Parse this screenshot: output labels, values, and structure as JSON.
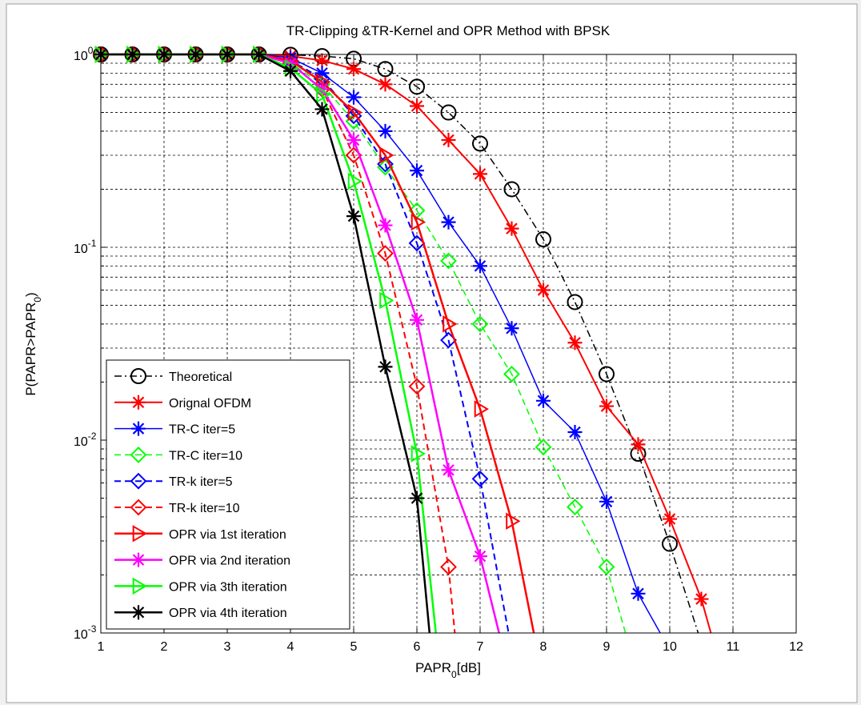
{
  "chart_data": {
    "type": "line",
    "title": "TR-Clipping &TR-Kernel and OPR Method with BPSK",
    "xlabel": "PAPR",
    "xlabel_sub": "0",
    "xlabel_suffix": "[dB]",
    "ylabel": "P(PAPR>PAPR",
    "ylabel_sub": "0",
    "ylabel_suffix": ")",
    "xlim": [
      1,
      12
    ],
    "ylim": [
      0.001,
      1
    ],
    "yscale": "log",
    "grid": true,
    "legend_position": "bottom-left",
    "xticks": [
      "1",
      "2",
      "3",
      "4",
      "5",
      "6",
      "7",
      "8",
      "9",
      "10",
      "11",
      "12"
    ],
    "yticks": [
      {
        "base": "10",
        "exp": "0",
        "value": 1
      },
      {
        "base": "10",
        "exp": "-1",
        "value": 0.1
      },
      {
        "base": "10",
        "exp": "-2",
        "value": 0.01
      },
      {
        "base": "10",
        "exp": "-3",
        "value": 0.001
      }
    ],
    "series": [
      {
        "name": "Theoretical",
        "color": "#000000",
        "dash": "dashdot",
        "marker": "circle",
        "width": 1.5,
        "x": [
          1,
          1.5,
          2,
          2.5,
          3,
          3.5,
          4,
          4.5,
          5,
          5.5,
          6,
          6.5,
          7,
          7.5,
          8,
          8.5,
          9,
          9.5,
          10,
          10.45
        ],
        "y": [
          1,
          1,
          1,
          1,
          1,
          1,
          0.995,
          0.98,
          0.95,
          0.84,
          0.68,
          0.5,
          0.345,
          0.2,
          0.11,
          0.052,
          0.022,
          0.0085,
          0.0029,
          0.001
        ]
      },
      {
        "name": "Orignal OFDM",
        "color": "#ff0000",
        "dash": "solid",
        "marker": "star",
        "width": 2,
        "x": [
          1,
          1.5,
          2,
          2.5,
          3,
          3.5,
          4,
          4.5,
          5,
          5.5,
          6,
          6.5,
          7,
          7.5,
          8,
          8.5,
          9,
          9.5,
          10,
          10.5,
          10.65
        ],
        "y": [
          1,
          1,
          1,
          1,
          1,
          1,
          0.98,
          0.93,
          0.84,
          0.7,
          0.54,
          0.36,
          0.24,
          0.125,
          0.06,
          0.032,
          0.015,
          0.0095,
          0.0039,
          0.0015,
          0.001
        ]
      },
      {
        "name": "TR-C iter=5",
        "color": "#0000ff",
        "dash": "solid",
        "marker": "star",
        "width": 1.5,
        "x": [
          1,
          1.5,
          2,
          2.5,
          3,
          3.5,
          4,
          4.5,
          5,
          5.5,
          6,
          6.5,
          7,
          7.5,
          8,
          8.5,
          9,
          9.5,
          9.85
        ],
        "y": [
          1,
          1,
          1,
          1,
          1,
          1,
          0.96,
          0.8,
          0.6,
          0.4,
          0.25,
          0.135,
          0.08,
          0.038,
          0.016,
          0.011,
          0.0048,
          0.0016,
          0.001
        ]
      },
      {
        "name": "TR-C iter=10",
        "color": "#00ff00",
        "dash": "dashed",
        "marker": "diamond",
        "width": 1.5,
        "x": [
          1,
          1.5,
          2,
          2.5,
          3,
          3.5,
          4,
          4.5,
          5,
          5.5,
          6,
          6.5,
          7,
          7.5,
          8,
          8.5,
          9,
          9.3
        ],
        "y": [
          1,
          1,
          1,
          1,
          1,
          1,
          0.9,
          0.7,
          0.45,
          0.26,
          0.155,
          0.085,
          0.04,
          0.022,
          0.0092,
          0.0045,
          0.0022,
          0.001
        ]
      },
      {
        "name": "TR-k iter=5",
        "color": "#0000ff",
        "dash": "dashed",
        "marker": "diamond",
        "width": 2,
        "x": [
          1,
          1.5,
          2,
          2.5,
          3,
          3.5,
          4,
          4.5,
          5,
          5.5,
          6,
          6.5,
          7,
          7.45
        ],
        "y": [
          1,
          1,
          1,
          1,
          1,
          1,
          0.93,
          0.75,
          0.48,
          0.27,
          0.105,
          0.033,
          0.0063,
          0.001
        ]
      },
      {
        "name": "TR-k iter=10",
        "color": "#ff0000",
        "dash": "dashed",
        "marker": "diamond",
        "width": 2,
        "x": [
          1,
          1.5,
          2,
          2.5,
          3,
          3.5,
          4,
          4.5,
          5,
          5.5,
          6,
          6.5,
          6.6
        ],
        "y": [
          1,
          1,
          1,
          1,
          1,
          1,
          0.9,
          0.66,
          0.3,
          0.093,
          0.019,
          0.0022,
          0.001
        ]
      },
      {
        "name": "OPR via 1st iteration",
        "color": "#ff0000",
        "dash": "solid",
        "marker": "triangle-right",
        "width": 2.5,
        "x": [
          1,
          1.5,
          2,
          2.5,
          3,
          3.5,
          4,
          4.5,
          5,
          5.5,
          6,
          6.5,
          7,
          7.5,
          7.85
        ],
        "y": [
          1,
          1,
          1,
          1,
          1,
          1,
          0.93,
          0.72,
          0.5,
          0.3,
          0.135,
          0.04,
          0.0145,
          0.0038,
          0.001
        ]
      },
      {
        "name": "OPR via 2nd iteration",
        "color": "#ff00ff",
        "dash": "solid",
        "marker": "star",
        "width": 2.5,
        "x": [
          1,
          1.5,
          2,
          2.5,
          3,
          3.5,
          4,
          4.5,
          5,
          5.5,
          6,
          6.5,
          7,
          7.3
        ],
        "y": [
          1,
          1,
          1,
          1,
          1,
          1,
          0.9,
          0.66,
          0.36,
          0.13,
          0.042,
          0.007,
          0.0025,
          0.001
        ]
      },
      {
        "name": "OPR via 3th iteration",
        "color": "#00ff00",
        "dash": "solid",
        "marker": "triangle-right",
        "width": 2.5,
        "x": [
          1,
          1.5,
          2,
          2.5,
          3,
          3.5,
          4,
          4.5,
          5,
          5.5,
          6,
          6.3
        ],
        "y": [
          1,
          1,
          1,
          1,
          1,
          1,
          0.85,
          0.62,
          0.22,
          0.053,
          0.0085,
          0.001
        ]
      },
      {
        "name": "OPR via 4th iteration",
        "color": "#000000",
        "dash": "solid",
        "marker": "star",
        "width": 2.5,
        "x": [
          1,
          1.5,
          2,
          2.5,
          3,
          3.5,
          4,
          4.5,
          5,
          5.5,
          6,
          6.2
        ],
        "y": [
          1,
          1,
          1,
          1,
          1,
          1,
          0.82,
          0.52,
          0.145,
          0.024,
          0.005,
          0.001
        ]
      }
    ]
  }
}
